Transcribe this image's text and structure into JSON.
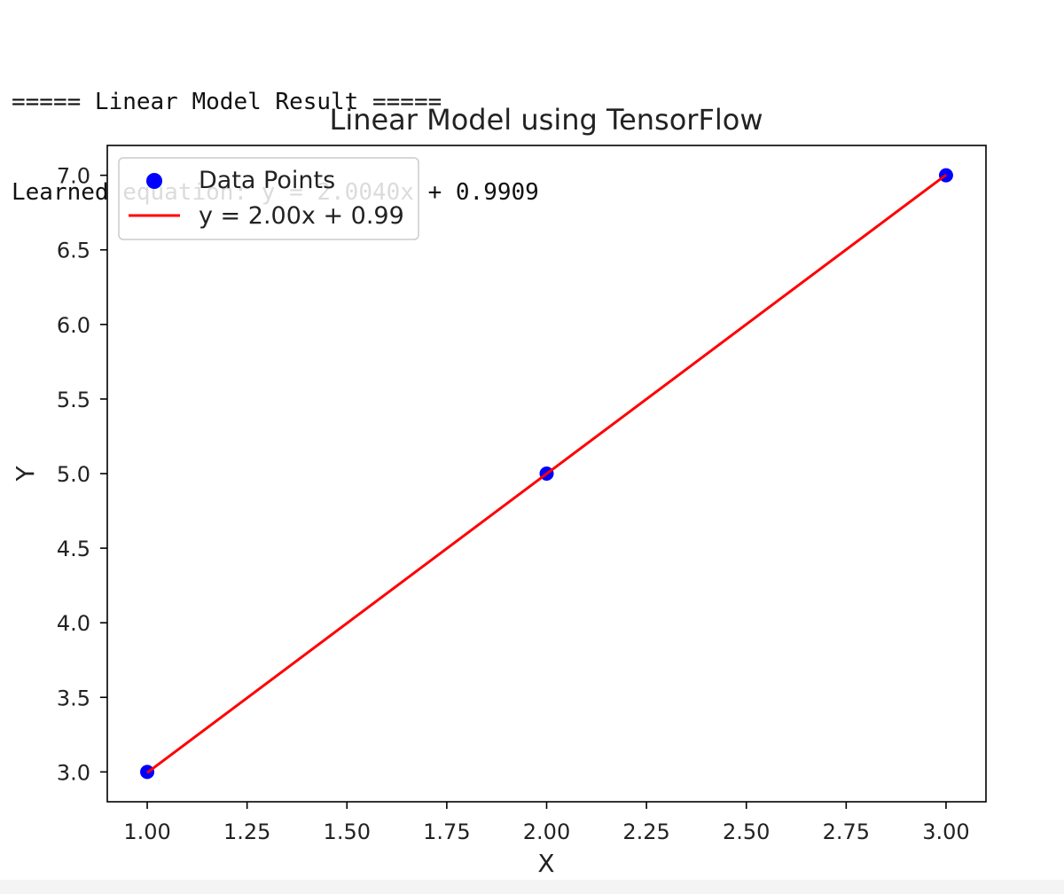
{
  "console": {
    "lines": [
      "===== Linear Model Result =====",
      "Learned equation: y = 2.0040x + 0.9909"
    ]
  },
  "chart_data": {
    "type": "scatter",
    "title": "Linear Model using TensorFlow",
    "xlabel": "X",
    "ylabel": "Y",
    "xlim": [
      0.9,
      3.1
    ],
    "ylim": [
      2.8,
      7.2
    ],
    "xticks": [
      1.0,
      1.25,
      1.5,
      1.75,
      2.0,
      2.25,
      2.5,
      2.75,
      3.0
    ],
    "xtick_labels": [
      "1.00",
      "1.25",
      "1.50",
      "1.75",
      "2.00",
      "2.25",
      "2.50",
      "2.75",
      "3.00"
    ],
    "yticks": [
      3.0,
      3.5,
      4.0,
      4.5,
      5.0,
      5.5,
      6.0,
      6.5,
      7.0
    ],
    "ytick_labels": [
      "3.0",
      "3.5",
      "4.0",
      "4.5",
      "5.0",
      "5.5",
      "6.0",
      "6.5",
      "7.0"
    ],
    "grid": false,
    "legend_position": "upper-left",
    "series": [
      {
        "name": "Data Points",
        "kind": "scatter",
        "color": "#0000ff",
        "x": [
          1.0,
          2.0,
          3.0
        ],
        "y": [
          3.0,
          5.0,
          7.0
        ]
      },
      {
        "name": "y = 2.00x + 0.99",
        "kind": "line",
        "color": "#ff0000",
        "x": [
          1.0,
          2.0,
          3.0
        ],
        "y": [
          2.9949,
          4.9989,
          7.0029
        ]
      }
    ]
  }
}
